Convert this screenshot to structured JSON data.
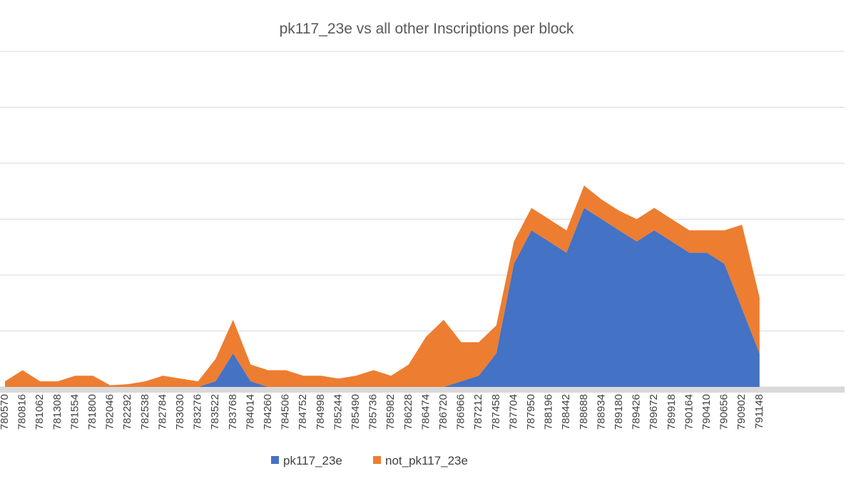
{
  "chart_data": {
    "type": "area",
    "title": "pk117_23e vs all other Inscriptions per block",
    "xlabel": "",
    "ylabel": "",
    "grid": true,
    "legend_position": "bottom",
    "stacked": true,
    "x_tick_labels": [
      "780570",
      "780816",
      "781062",
      "781308",
      "781554",
      "781800",
      "782046",
      "782292",
      "782538",
      "782784",
      "783030",
      "783276",
      "783522",
      "783768",
      "784014",
      "784260",
      "784506",
      "784752",
      "784998",
      "785244",
      "785490",
      "785736",
      "785982",
      "786228",
      "786474",
      "786720",
      "786966",
      "787212",
      "787458",
      "787704",
      "787950",
      "788196",
      "788442",
      "788688",
      "788934",
      "789180",
      "789426",
      "789672",
      "789918",
      "790164",
      "790410",
      "790656",
      "790902",
      "791148"
    ],
    "x": [
      780570,
      780816,
      781062,
      781308,
      781554,
      781800,
      782046,
      782292,
      782538,
      782784,
      783030,
      783276,
      783522,
      783768,
      784014,
      784260,
      784506,
      784752,
      784998,
      785244,
      785490,
      785736,
      785982,
      786228,
      786474,
      786720,
      786966,
      787212,
      787458,
      787704,
      787950,
      788196,
      788442,
      788688,
      788934,
      789180,
      789426,
      789672,
      789918,
      790164,
      790410,
      790656,
      790902,
      791148
    ],
    "ylim": [
      0,
      6
    ],
    "series": [
      {
        "name": "pk117_23e",
        "color": "#4472C4",
        "values": [
          0,
          0,
          0,
          0,
          0,
          0,
          0,
          0,
          0,
          0,
          0,
          0,
          0.1,
          0.6,
          0.1,
          0,
          0,
          0,
          0,
          0,
          0,
          0,
          0,
          0,
          0,
          0,
          0.1,
          0.2,
          0.6,
          2.2,
          2.8,
          2.6,
          2.4,
          3.2,
          3.0,
          2.8,
          2.6,
          2.8,
          2.6,
          2.4,
          2.4,
          2.2,
          1.4,
          0.6
        ]
      },
      {
        "name": "not_pk117_23e",
        "color": "#ED7D31",
        "values": [
          0.1,
          0.3,
          0.1,
          0.1,
          0.2,
          0.2,
          0.03,
          0.05,
          0.1,
          0.2,
          0.15,
          0.1,
          0.4,
          0.6,
          0.3,
          0.3,
          0.3,
          0.2,
          0.2,
          0.15,
          0.2,
          0.3,
          0.2,
          0.4,
          0.9,
          1.2,
          0.7,
          0.6,
          0.5,
          0.4,
          0.4,
          0.4,
          0.4,
          0.4,
          0.35,
          0.35,
          0.4,
          0.4,
          0.4,
          0.4,
          0.4,
          0.6,
          1.5,
          1.0
        ]
      }
    ]
  }
}
